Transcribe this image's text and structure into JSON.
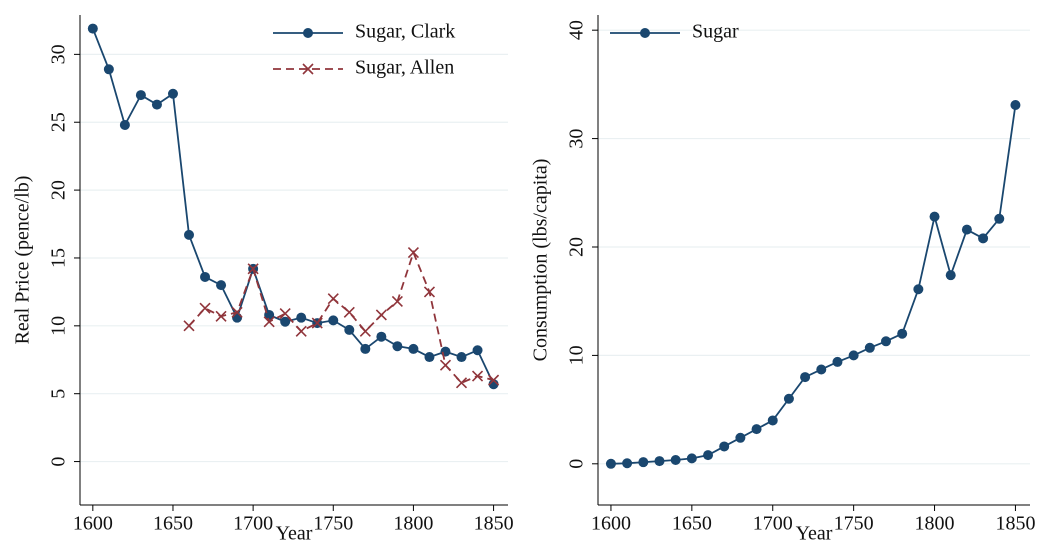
{
  "chart_data": [
    {
      "type": "line",
      "xlabel": "Year",
      "ylabel": "Real Price (pence/lb)",
      "x": [
        1600,
        1610,
        1620,
        1630,
        1640,
        1650,
        1660,
        1670,
        1680,
        1690,
        1700,
        1710,
        1720,
        1730,
        1740,
        1750,
        1760,
        1770,
        1780,
        1790,
        1800,
        1810,
        1820,
        1830,
        1840,
        1850
      ],
      "series": [
        {
          "name": "Sugar, Clark",
          "color": "#1a476f",
          "marker": "circle",
          "dashed": false,
          "values": [
            31.9,
            28.9,
            24.8,
            27.0,
            26.3,
            27.1,
            16.7,
            13.6,
            13.0,
            10.6,
            14.2,
            10.8,
            10.3,
            10.6,
            10.2,
            10.4,
            9.7,
            8.3,
            9.2,
            8.5,
            8.3,
            7.7,
            8.1,
            7.7,
            8.2,
            5.7
          ]
        },
        {
          "name": "Sugar, Allen",
          "color": "#90353b",
          "marker": "x",
          "dashed": true,
          "values": [
            null,
            null,
            null,
            null,
            null,
            null,
            10.0,
            11.3,
            10.7,
            11.0,
            14.2,
            10.3,
            10.9,
            9.6,
            10.2,
            12.0,
            11.0,
            9.6,
            10.8,
            11.8,
            15.4,
            12.5,
            7.1,
            5.8,
            6.3,
            6.0
          ]
        }
      ],
      "xlim": [
        1592,
        1859
      ],
      "xticks": [
        1600,
        1650,
        1700,
        1750,
        1800,
        1850
      ],
      "ylim": [
        -3.2,
        32.9
      ],
      "yticks": [
        0,
        5,
        10,
        15,
        20,
        25,
        30
      ],
      "grid": true,
      "legend": "upper right"
    },
    {
      "type": "line",
      "xlabel": "Year",
      "ylabel": "Consumption (lbs/capita)",
      "x": [
        1600,
        1610,
        1620,
        1630,
        1640,
        1650,
        1660,
        1670,
        1680,
        1690,
        1700,
        1710,
        1720,
        1730,
        1740,
        1750,
        1760,
        1770,
        1780,
        1790,
        1800,
        1810,
        1820,
        1830,
        1840,
        1850
      ],
      "series": [
        {
          "name": "Sugar",
          "color": "#1a476f",
          "marker": "circle",
          "dashed": false,
          "values": [
            0,
            0.05,
            0.15,
            0.25,
            0.35,
            0.5,
            0.8,
            1.6,
            2.4,
            3.2,
            4.0,
            6.0,
            8.0,
            8.7,
            9.4,
            10.0,
            10.7,
            11.3,
            12.0,
            16.1,
            22.8,
            17.4,
            21.6,
            20.8,
            22.6,
            33.1
          ]
        }
      ],
      "xlim": [
        1592,
        1859
      ],
      "xticks": [
        1600,
        1650,
        1700,
        1750,
        1800,
        1850
      ],
      "ylim": [
        -3.8,
        41.4
      ],
      "yticks": [
        0,
        10,
        20,
        30,
        40
      ],
      "grid": true,
      "legend": "upper left"
    }
  ]
}
